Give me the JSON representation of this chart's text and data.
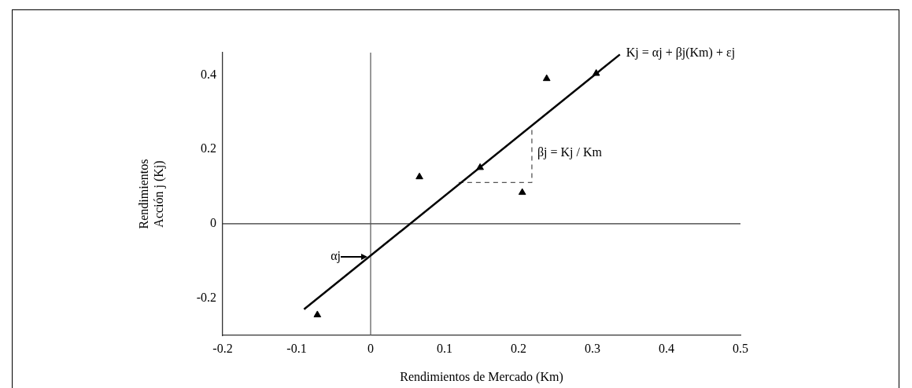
{
  "chart_data": {
    "type": "scatter",
    "xlabel": "Rendimientos de Mercado (Km)",
    "ylabel": "Rendimientos\nAcción j (Kj)",
    "xlim": [
      -0.2,
      0.5
    ],
    "xticks": [
      -0.2,
      -0.1,
      0,
      0.1,
      0.2,
      0.3,
      0.4,
      0.5
    ],
    "ylim": [
      -0.3,
      0.46
    ],
    "yticks": [
      -0.2,
      0,
      0.2,
      0.4
    ],
    "marker": "triangle",
    "grid": false,
    "legend": false,
    "series": [
      {
        "type": "scatter",
        "color": "#000000",
        "x": [
          -0.072,
          0.066,
          0.148,
          0.205,
          0.238,
          0.305
        ],
        "values": [
          -0.245,
          0.126,
          0.151,
          0.084,
          0.39,
          0.404
        ]
      },
      {
        "type": "line",
        "color": "#000000",
        "marker": "none",
        "x": [
          -0.09,
          0.337
        ],
        "values": [
          -0.23,
          0.455
        ]
      },
      {
        "type": "line",
        "color": "#555555",
        "marker": "none",
        "line_style": "dashed",
        "x": [
          0.119,
          0.218,
          0.218
        ],
        "values": [
          0.111,
          0.111,
          0.264
        ]
      }
    ],
    "ref_lines": [
      {
        "axis": "y",
        "value": 0,
        "color": "#333333"
      },
      {
        "axis": "x",
        "value": 0,
        "color": "#555555"
      }
    ],
    "annotations": [
      {
        "text": "Kj = αj + βj(Km) + εj",
        "x": 0.337,
        "y": 0.455
      },
      {
        "text": "βj = Kj / Km",
        "x": 0.218,
        "y": 0.19
      },
      {
        "text": "αj",
        "x": 0,
        "y": -0.088
      }
    ]
  }
}
